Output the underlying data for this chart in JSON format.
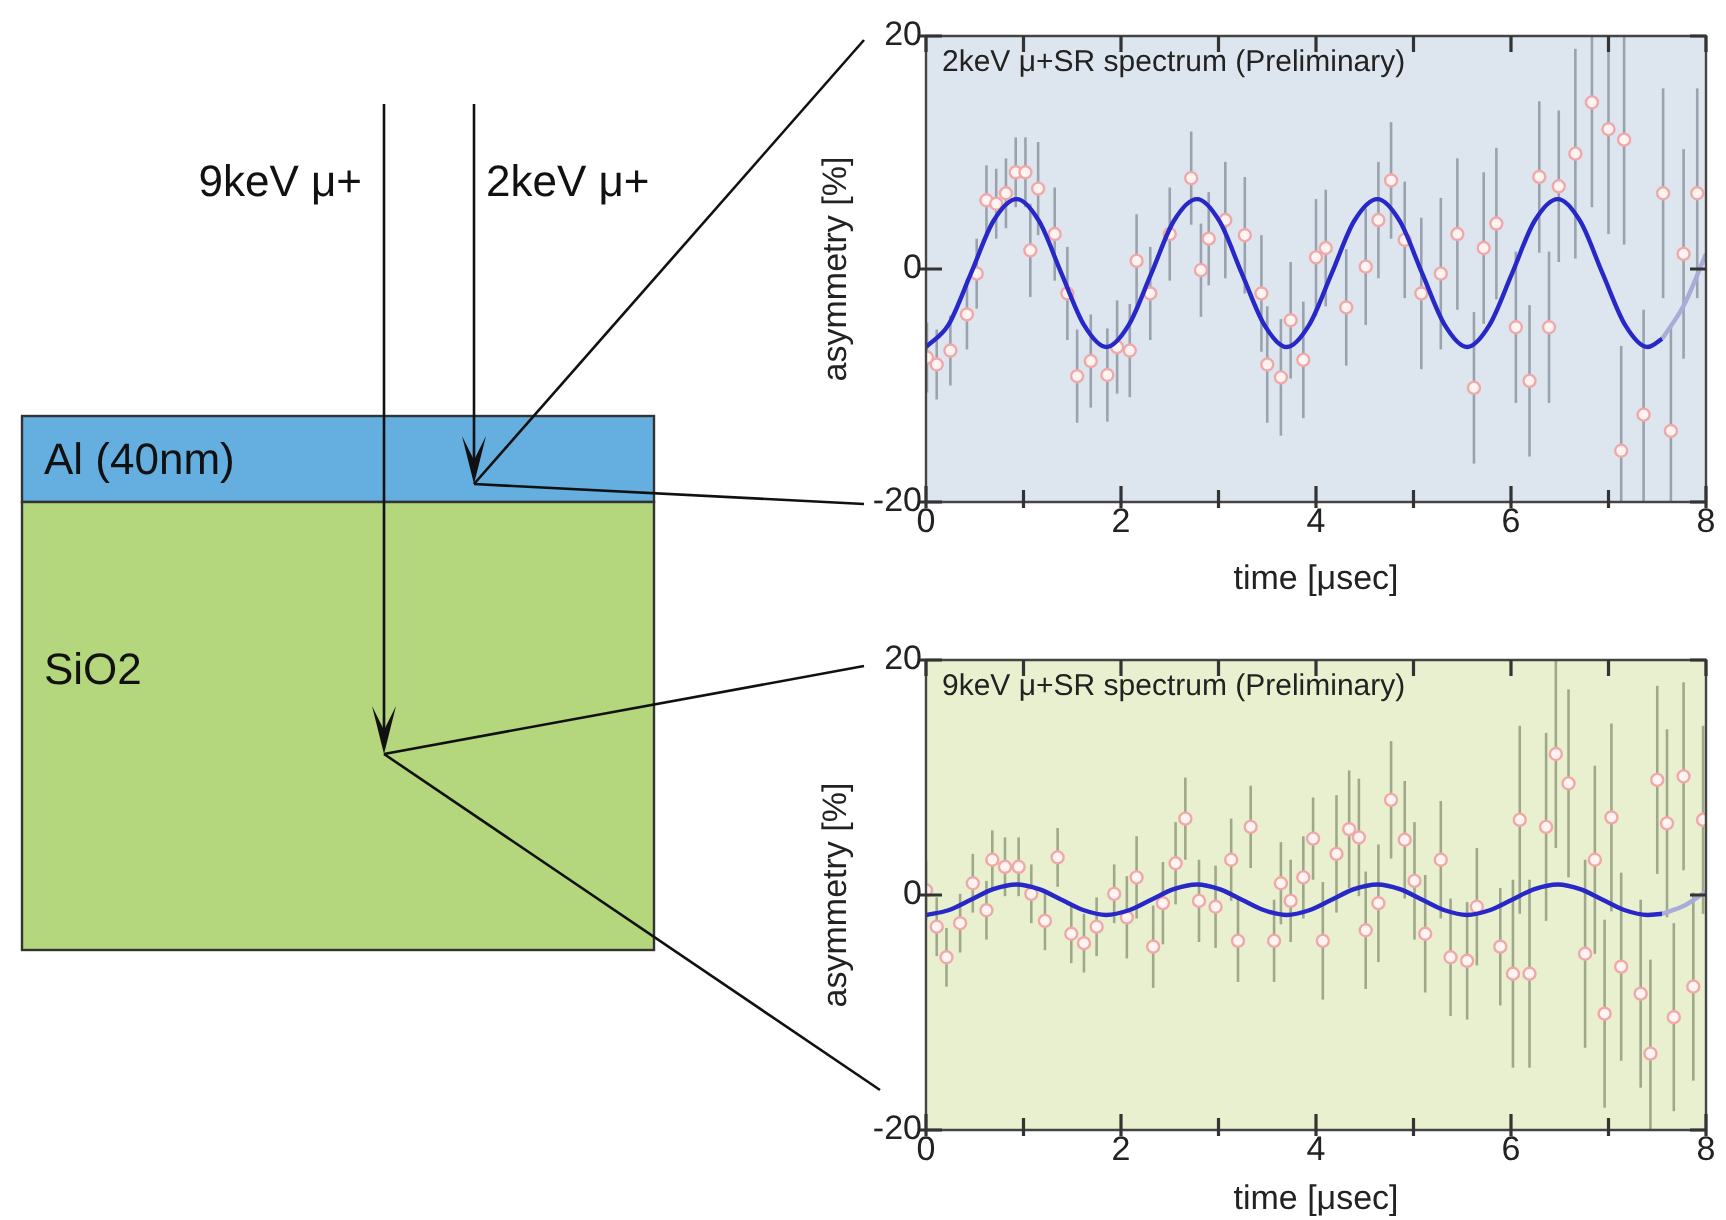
{
  "chart_data": [
    {
      "type": "other",
      "annotations": [
        "9keV μ+",
        "2keV μ+",
        "Al (40nm)",
        "SiO2"
      ]
    },
    {
      "type": "scatter",
      "title": "2keV μ+SR spectrum (Preliminary)",
      "xlabel": "time [μsec]",
      "ylabel": "asymmetry [%]",
      "xlim": [
        0,
        8
      ],
      "ylim": [
        -20,
        20
      ],
      "xticks": [
        0,
        {
          "value": 1,
          "label": null
        },
        2,
        {
          "value": 3,
          "label": null
        },
        4,
        {
          "value": 5,
          "label": null
        },
        6,
        {
          "value": 7,
          "label": null
        },
        8
      ],
      "yticks": [
        -20,
        0,
        20
      ],
      "grid": false,
      "legend": false,
      "series": [
        {
          "type": "scatter",
          "marker": "circle",
          "color": "#f0a8a8",
          "x": [
            0.01,
            0.11,
            0.25,
            0.42,
            0.52,
            0.62,
            0.72,
            0.82,
            0.92,
            1.02,
            1.07,
            1.15,
            1.32,
            1.45,
            1.55,
            1.69,
            1.86,
            1.96,
            2.09,
            2.16,
            2.3,
            2.5,
            2.72,
            2.82,
            2.9,
            3.07,
            3.27,
            3.44,
            3.5,
            3.64,
            3.74,
            3.87,
            4.0,
            4.1,
            4.31,
            4.51,
            4.64,
            4.77,
            4.91,
            5.08,
            5.28,
            5.45,
            5.62,
            5.72,
            5.85,
            6.05,
            6.19,
            6.29,
            6.39,
            6.49,
            6.66,
            6.83,
            7.0,
            7.13,
            7.16,
            7.36,
            7.56,
            7.64,
            7.77,
            7.91
          ],
          "values": [
            -7.6,
            -8.2,
            -7,
            -3.9,
            -0.4,
            5.9,
            5.6,
            6.5,
            8.3,
            8.3,
            1.6,
            6.9,
            3,
            -2.1,
            -9.2,
            -7.9,
            -9.1,
            -6.7,
            -7,
            0.7,
            -2.1,
            3,
            7.8,
            -0.1,
            2.6,
            4.2,
            2.9,
            -2.1,
            -8.2,
            -9.3,
            -4.4,
            -7.8,
            1,
            1.8,
            -3.3,
            0.2,
            4.2,
            7.6,
            2.5,
            -2.1,
            -0.4,
            3,
            -10.2,
            1.8,
            3.9,
            -5,
            -9.6,
            7.9,
            -5,
            7.1,
            9.9,
            14.3,
            12,
            -15.6,
            11.1,
            -12.5,
            6.5,
            -13.9,
            1.3,
            6.5
          ],
          "errors": [
            3,
            3,
            3,
            3,
            3,
            3,
            3,
            3,
            3,
            3,
            4,
            4,
            4,
            4,
            4,
            4,
            4,
            4,
            4,
            4,
            4,
            4,
            4,
            4,
            4,
            5,
            5,
            5,
            5,
            5,
            5,
            5,
            5,
            5,
            5,
            5,
            5,
            5,
            5,
            6.5,
            6.5,
            6.5,
            6.5,
            6.5,
            6.5,
            6.5,
            6.5,
            6.5,
            6.5,
            6.5,
            9,
            9,
            9,
            9,
            9,
            9,
            9,
            9,
            9,
            9
          ]
        },
        {
          "type": "line",
          "color": "#2828c8",
          "x": [
            0,
            0.23,
            0.46,
            0.69,
            0.93,
            1.16,
            1.39,
            1.62,
            1.85,
            2.08,
            2.31,
            2.54,
            2.78,
            3.01,
            3.24,
            3.47,
            3.7,
            3.93,
            4.16,
            4.39,
            4.63,
            4.86,
            5.09,
            5.32,
            5.55,
            5.78,
            6.01,
            6.24,
            6.48,
            6.71,
            6.94,
            7.17,
            7.4,
            7.55
          ],
          "values": [
            -6.7,
            -4.8,
            -0.4,
            4.1,
            6,
            4.1,
            -0.4,
            -4.8,
            -6.7,
            -4.8,
            -0.4,
            4.1,
            6,
            4.1,
            -0.4,
            -4.8,
            -6.7,
            -4.8,
            -0.4,
            4.1,
            6,
            4.1,
            -0.4,
            -4.8,
            -6.7,
            -4.8,
            -0.4,
            4.1,
            6,
            4.1,
            -0.4,
            -4.8,
            -6.7,
            -6
          ]
        },
        {
          "type": "line",
          "color": "#a8acd8",
          "x": [
            7.55,
            7.78,
            8
          ],
          "values": [
            -6,
            -3,
            1.3
          ]
        }
      ]
    },
    {
      "type": "scatter",
      "title": "9keV μ+SR spectrum (Preliminary)",
      "xlabel": "time [μsec]",
      "ylabel": "asymmetry [%]",
      "xlim": [
        0,
        8
      ],
      "ylim": [
        -20,
        20
      ],
      "xticks": [
        0,
        {
          "value": 1,
          "label": null
        },
        2,
        {
          "value": 3,
          "label": null
        },
        4,
        {
          "value": 5,
          "label": null
        },
        6,
        {
          "value": 7,
          "label": null
        },
        8
      ],
      "yticks": [
        -20,
        0,
        20
      ],
      "grid": false,
      "legend": false,
      "series": [
        {
          "type": "scatter",
          "marker": "circle",
          "color": "#f0a8a8",
          "x": [
            0,
            0.11,
            0.21,
            0.35,
            0.48,
            0.62,
            0.68,
            0.81,
            0.95,
            1.08,
            1.22,
            1.35,
            1.49,
            1.62,
            1.75,
            1.93,
            2.06,
            2.16,
            2.33,
            2.43,
            2.56,
            2.66,
            2.8,
            2.97,
            3.13,
            3.2,
            3.33,
            3.57,
            3.64,
            3.74,
            3.87,
            3.97,
            4.07,
            4.21,
            4.34,
            4.44,
            4.51,
            4.64,
            4.77,
            4.91,
            5.01,
            5.12,
            5.28,
            5.38,
            5.55,
            5.65,
            5.89,
            6.02,
            6.09,
            6.19,
            6.36,
            6.46,
            6.59,
            6.76,
            6.86,
            6.96,
            7.03,
            7.13,
            7.33,
            7.43,
            7.5,
            7.6,
            7.67,
            7.77,
            7.87,
            7.97
          ],
          "values": [
            0.4,
            -2.7,
            -5.3,
            -2.4,
            1,
            -1.3,
            3,
            2.4,
            2.4,
            0.1,
            -2.2,
            3.2,
            -3.3,
            -4.1,
            -2.7,
            0.1,
            -1.9,
            1.5,
            -4.4,
            -0.7,
            2.7,
            6.5,
            -0.5,
            -1,
            3,
            -3.9,
            5.8,
            -3.9,
            1,
            -0.5,
            1.5,
            4.8,
            -3.9,
            3.5,
            5.6,
            4.9,
            -3,
            -0.7,
            8.1,
            4.7,
            1.2,
            -3.3,
            3,
            -5.3,
            -5.6,
            -1,
            -4.4,
            -6.7,
            6.4,
            -6.7,
            5.8,
            12,
            9.5,
            -5,
            3,
            -10.1,
            6.6,
            -6.1,
            -8.4,
            -13.5,
            9.8,
            6.1,
            -10.4,
            10.1,
            -7.8,
            6.4
          ],
          "errors": [
            2.5,
            2.5,
            2.5,
            2.5,
            2.5,
            2.5,
            2.5,
            2.5,
            2.5,
            2.5,
            2.5,
            2.5,
            2.5,
            2.5,
            2.5,
            2.5,
            3.5,
            3.5,
            3.5,
            3.5,
            3.5,
            3.5,
            3.5,
            3.5,
            3.5,
            3.5,
            3.5,
            3.5,
            3.5,
            3.5,
            3.5,
            3.5,
            5,
            5,
            5,
            5,
            5,
            5,
            5,
            5,
            5,
            5,
            5,
            5,
            5,
            5,
            5,
            8,
            8,
            8,
            8,
            8,
            8,
            8,
            8,
            8,
            8,
            8,
            8,
            8,
            8,
            8,
            8,
            8,
            8,
            8
          ]
        },
        {
          "type": "line",
          "color": "#2828c8",
          "x": [
            0,
            0.23,
            0.46,
            0.69,
            0.93,
            1.16,
            1.39,
            1.62,
            1.85,
            2.08,
            2.31,
            2.54,
            2.78,
            3.01,
            3.24,
            3.47,
            3.7,
            3.93,
            4.16,
            4.39,
            4.63,
            4.86,
            5.09,
            5.32,
            5.55,
            5.78,
            6.01,
            6.24,
            6.48,
            6.71,
            6.94,
            7.17,
            7.4,
            7.55
          ],
          "values": [
            -1.7,
            -1.3,
            -0.4,
            0.5,
            0.9,
            0.5,
            -0.4,
            -1.3,
            -1.7,
            -1.3,
            -0.4,
            0.5,
            0.9,
            0.5,
            -0.4,
            -1.3,
            -1.7,
            -1.3,
            -0.4,
            0.5,
            0.9,
            0.5,
            -0.4,
            -1.3,
            -1.7,
            -1.3,
            -0.4,
            0.5,
            0.9,
            0.5,
            -0.4,
            -1.3,
            -1.7,
            -1.6
          ]
        },
        {
          "type": "line",
          "color": "#a8acd8",
          "x": [
            7.55,
            7.78,
            8
          ],
          "values": [
            -1.6,
            -0.9,
            0.3
          ]
        }
      ]
    }
  ]
}
